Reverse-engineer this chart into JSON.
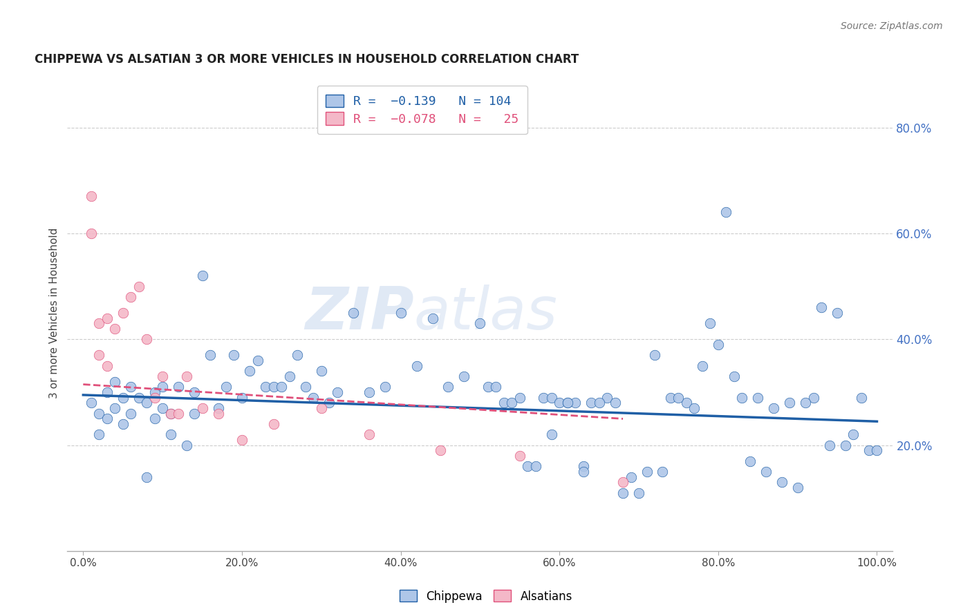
{
  "title": "CHIPPEWA VS ALSATIAN 3 OR MORE VEHICLES IN HOUSEHOLD CORRELATION CHART",
  "source": "Source: ZipAtlas.com",
  "ylabel_left": "3 or more Vehicles in Household",
  "x_tick_labels": [
    "0.0%",
    "20.0%",
    "40.0%",
    "60.0%",
    "80.0%",
    "100.0%"
  ],
  "x_tick_vals": [
    0,
    20,
    40,
    60,
    80,
    100
  ],
  "y_tick_labels": [
    "20.0%",
    "40.0%",
    "60.0%",
    "80.0%"
  ],
  "y_tick_vals": [
    20,
    40,
    60,
    80
  ],
  "ylim": [
    0,
    90
  ],
  "xlim": [
    -2,
    102
  ],
  "blue_color": "#aec6e8",
  "blue_line_color": "#1f5fa6",
  "pink_color": "#f4b8c8",
  "pink_line_color": "#e0507a",
  "right_axis_color": "#4472c4",
  "watermark_zip": "ZIP",
  "watermark_atlas": "atlas",
  "chippewa_x": [
    1,
    2,
    2,
    3,
    3,
    4,
    4,
    5,
    5,
    6,
    6,
    7,
    8,
    8,
    9,
    9,
    10,
    10,
    11,
    11,
    12,
    13,
    14,
    14,
    15,
    16,
    17,
    18,
    19,
    20,
    21,
    22,
    23,
    24,
    25,
    26,
    27,
    28,
    29,
    30,
    31,
    32,
    34,
    36,
    38,
    40,
    42,
    44,
    46,
    48,
    50,
    51,
    52,
    53,
    54,
    55,
    56,
    57,
    58,
    59,
    60,
    61,
    62,
    63,
    64,
    66,
    68,
    70,
    72,
    74,
    76,
    78,
    80,
    82,
    84,
    86,
    88,
    90,
    92,
    94,
    96,
    97,
    98,
    99,
    100,
    95,
    93,
    91,
    89,
    87,
    85,
    83,
    81,
    79,
    77,
    75,
    73,
    71,
    69,
    67,
    65,
    63,
    61,
    59
  ],
  "chippewa_y": [
    28,
    26,
    22,
    30,
    25,
    32,
    27,
    29,
    24,
    31,
    26,
    29,
    14,
    28,
    30,
    25,
    31,
    27,
    22,
    26,
    31,
    20,
    30,
    26,
    52,
    37,
    27,
    31,
    37,
    29,
    34,
    36,
    31,
    31,
    31,
    33,
    37,
    31,
    29,
    34,
    28,
    30,
    45,
    30,
    31,
    45,
    35,
    44,
    31,
    33,
    43,
    31,
    31,
    28,
    28,
    29,
    16,
    16,
    29,
    29,
    28,
    28,
    28,
    16,
    28,
    29,
    11,
    11,
    37,
    29,
    28,
    35,
    39,
    33,
    17,
    15,
    13,
    12,
    29,
    20,
    20,
    22,
    29,
    19,
    19,
    45,
    46,
    28,
    28,
    27,
    29,
    29,
    64,
    43,
    27,
    29,
    15,
    15,
    14,
    28,
    28,
    15,
    28,
    22
  ],
  "alsatian_x": [
    1,
    1,
    2,
    2,
    3,
    3,
    4,
    5,
    6,
    7,
    8,
    9,
    10,
    11,
    12,
    13,
    15,
    17,
    20,
    24,
    30,
    36,
    45,
    55,
    68
  ],
  "alsatian_y": [
    67,
    60,
    43,
    37,
    35,
    44,
    42,
    45,
    48,
    50,
    40,
    29,
    33,
    26,
    26,
    33,
    27,
    26,
    21,
    24,
    27,
    22,
    19,
    18,
    13
  ],
  "blue_trend_x": [
    0,
    100
  ],
  "blue_trend_y": [
    29.5,
    24.5
  ],
  "pink_trend_x": [
    0,
    68
  ],
  "pink_trend_y": [
    31.5,
    25.0
  ]
}
